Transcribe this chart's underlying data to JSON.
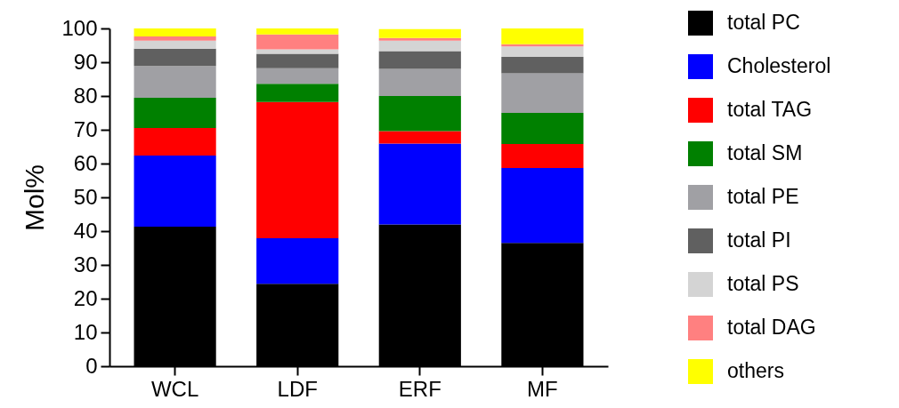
{
  "chart_data": {
    "type": "bar",
    "stacked": true,
    "ylabel": "Mol%",
    "categories": [
      "WCL",
      "LDF",
      "ERF",
      "MF"
    ],
    "ylim": [
      0,
      100
    ],
    "yticks": [
      0,
      10,
      20,
      30,
      40,
      50,
      60,
      70,
      80,
      90,
      100
    ],
    "grid": false,
    "legend": "right",
    "series": [
      {
        "name": "total PC",
        "color": "#000000",
        "values": [
          41.3,
          24.4,
          42.0,
          36.5
        ]
      },
      {
        "name": "Cholesterol",
        "color": "#0000ff",
        "values": [
          21.1,
          13.5,
          23.9,
          22.2
        ]
      },
      {
        "name": "total TAG",
        "color": "#ff0000",
        "values": [
          8.1,
          40.3,
          3.7,
          7.1
        ]
      },
      {
        "name": "total SM",
        "color": "#008000",
        "values": [
          9.0,
          5.4,
          10.4,
          9.2
        ]
      },
      {
        "name": "total PE",
        "color": "#a0a0a4",
        "values": [
          9.4,
          4.6,
          8.0,
          11.7
        ]
      },
      {
        "name": "total PI",
        "color": "#606060",
        "values": [
          5.1,
          4.3,
          5.3,
          4.9
        ]
      },
      {
        "name": "total PS",
        "color": "#d4d4d4",
        "values": [
          2.4,
          1.3,
          3.1,
          3.1
        ]
      },
      {
        "name": "total DAG",
        "color": "#ff8080",
        "values": [
          1.2,
          4.4,
          0.8,
          0.6
        ]
      },
      {
        "name": "others",
        "color": "#ffff00",
        "values": [
          2.4,
          1.8,
          2.6,
          4.7
        ]
      }
    ]
  }
}
